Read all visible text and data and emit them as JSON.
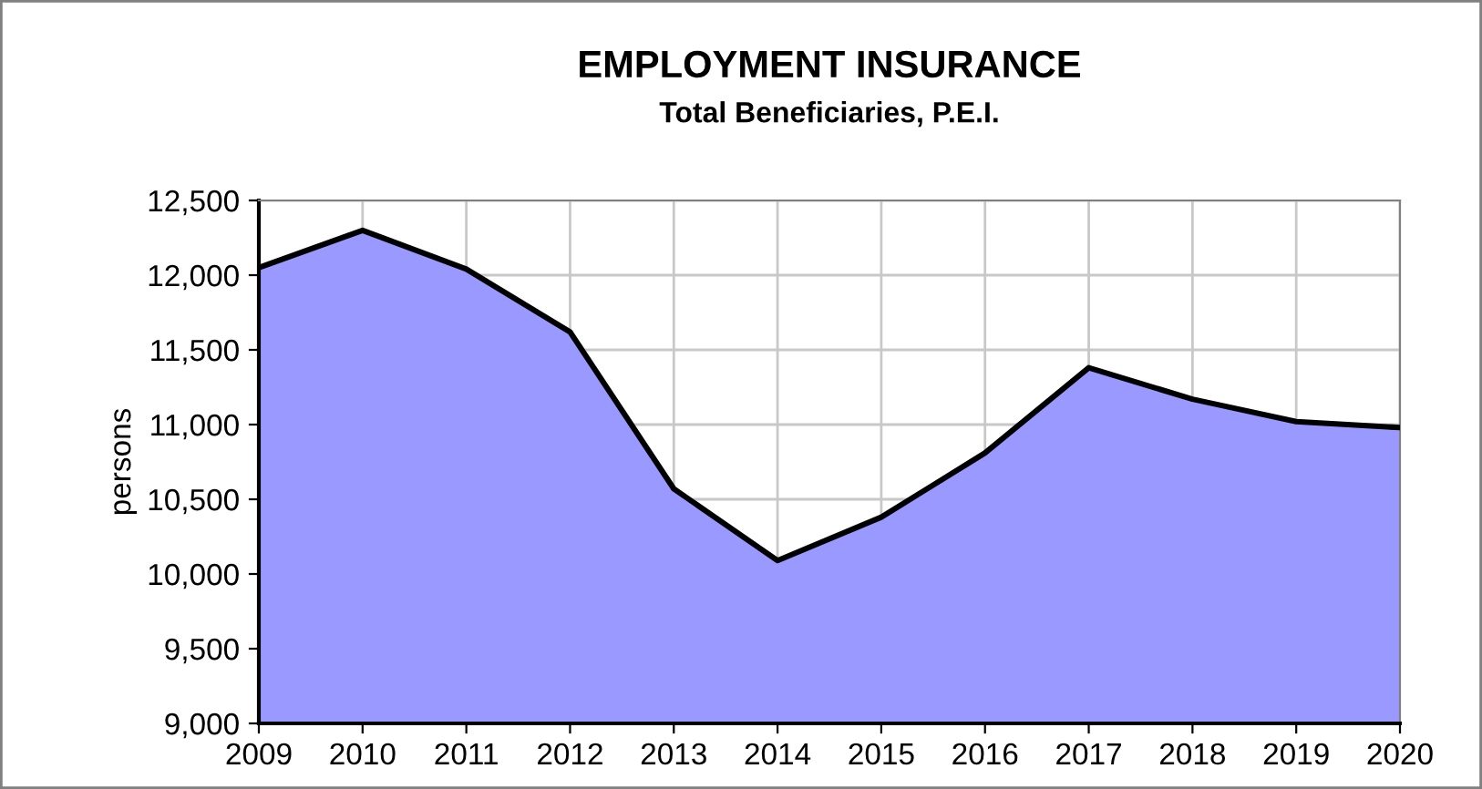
{
  "chart_data": {
    "type": "area",
    "title": "EMPLOYMENT INSURANCE",
    "subtitle": "Total Beneficiaries, P.E.I.",
    "ylabel": "persons",
    "x": [
      2009,
      2010,
      2011,
      2012,
      2013,
      2014,
      2015,
      2016,
      2017,
      2018,
      2019,
      2020
    ],
    "series": [
      {
        "color": "#9999ff",
        "values": [
          12050,
          12300,
          12040,
          11620,
          10570,
          10090,
          10380,
          10810,
          11380,
          11170,
          11020,
          10980
        ]
      }
    ],
    "xlim": [
      2009,
      2020
    ],
    "xticks": [
      2009,
      2010,
      2011,
      2012,
      2013,
      2014,
      2015,
      2016,
      2017,
      2018,
      2019,
      2020
    ],
    "ylim": [
      9000,
      12500
    ],
    "yticks": [
      {
        "value": 9000,
        "label": "9,000"
      },
      {
        "value": 9500,
        "label": "9,500"
      },
      {
        "value": 10000,
        "label": "10,000"
      },
      {
        "value": 10500,
        "label": "10,500"
      },
      {
        "value": 11000,
        "label": "11,000"
      },
      {
        "value": 11500,
        "label": "11,500"
      },
      {
        "value": 12000,
        "label": "12,000"
      },
      {
        "value": 12500,
        "label": "12,500"
      }
    ],
    "grid": true,
    "legend": false
  }
}
